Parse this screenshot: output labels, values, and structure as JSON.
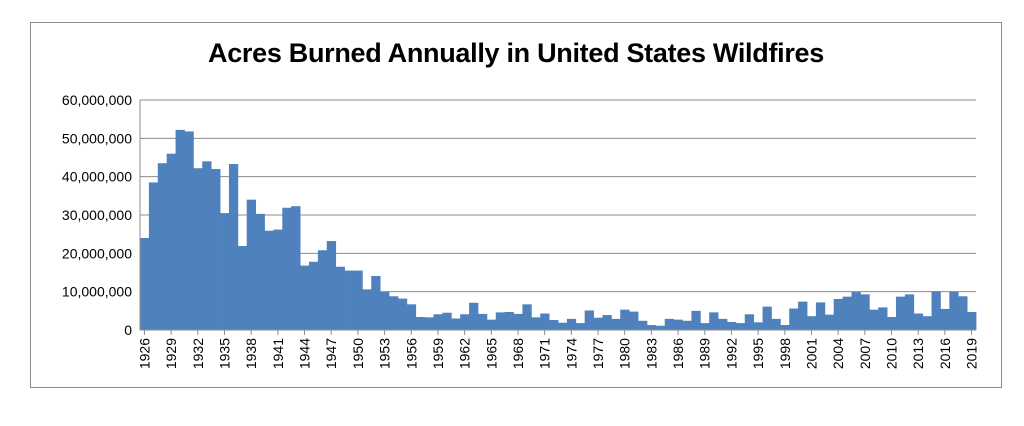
{
  "chart_data": {
    "type": "bar",
    "title": "Acres Burned Annually in United States Wildfires",
    "xlabel": "",
    "ylabel": "",
    "ylim": [
      0,
      60000000
    ],
    "yticks": [
      "0",
      "10,000,000",
      "20,000,000",
      "30,000,000",
      "40,000,000",
      "50,000,000",
      "60,000,000"
    ],
    "grid": "horizontal",
    "legend": "none",
    "bar_color": "#4f81bd",
    "categories": [
      "1926",
      "1927",
      "1928",
      "1929",
      "1930",
      "1931",
      "1932",
      "1933",
      "1934",
      "1935",
      "1936",
      "1937",
      "1938",
      "1939",
      "1940",
      "1941",
      "1942",
      "1943",
      "1944",
      "1945",
      "1946",
      "1947",
      "1948",
      "1949",
      "1950",
      "1951",
      "1952",
      "1953",
      "1954",
      "1955",
      "1956",
      "1957",
      "1958",
      "1959",
      "1960",
      "1961",
      "1962",
      "1963",
      "1964",
      "1965",
      "1966",
      "1967",
      "1968",
      "1969",
      "1970",
      "1971",
      "1972",
      "1973",
      "1974",
      "1975",
      "1976",
      "1977",
      "1978",
      "1979",
      "1980",
      "1981",
      "1982",
      "1983",
      "1984",
      "1985",
      "1986",
      "1987",
      "1988",
      "1989",
      "1990",
      "1991",
      "1992",
      "1993",
      "1994",
      "1995",
      "1996",
      "1997",
      "1998",
      "1999",
      "2000",
      "2001",
      "2002",
      "2003",
      "2004",
      "2005",
      "2006",
      "2007",
      "2008",
      "2009",
      "2010",
      "2011",
      "2012",
      "2013",
      "2014",
      "2015",
      "2016",
      "2017",
      "2018",
      "2019"
    ],
    "tick_labels_shown": [
      "1926",
      "1929",
      "1932",
      "1935",
      "1938",
      "1941",
      "1944",
      "1947",
      "1950",
      "1953",
      "1956",
      "1959",
      "1962",
      "1965",
      "1968",
      "1971",
      "1974",
      "1977",
      "1980",
      "1983",
      "1986",
      "1989",
      "1992",
      "1995",
      "1998",
      "2001",
      "2004",
      "2007",
      "2010",
      "2013",
      "2016",
      "2019"
    ],
    "values": [
      24000000,
      38500000,
      43500000,
      46000000,
      52200000,
      51800000,
      42200000,
      44000000,
      42000000,
      30500000,
      43300000,
      21900000,
      34000000,
      30300000,
      25900000,
      26200000,
      31900000,
      32300000,
      16800000,
      17800000,
      20800000,
      23200000,
      16500000,
      15500000,
      15500000,
      10600000,
      14100000,
      9900000,
      8800000,
      8200000,
      6700000,
      3400000,
      3300000,
      4100000,
      4500000,
      3000000,
      4100000,
      7100000,
      4200000,
      2700000,
      4600000,
      4700000,
      4200000,
      6700000,
      3300000,
      4300000,
      2600000,
      1900000,
      2900000,
      1800000,
      5100000,
      3200000,
      3900000,
      2900000,
      5300000,
      4800000,
      2400000,
      1300000,
      1100000,
      2900000,
      2700000,
      2400000,
      5000000,
      1800000,
      4600000,
      2900000,
      2100000,
      1800000,
      4100000,
      2000000,
      6100000,
      2900000,
      1300000,
      5600000,
      7400000,
      3600000,
      7200000,
      4000000,
      8100000,
      8700000,
      9900000,
      9300000,
      5300000,
      5900000,
      3400000,
      8700000,
      9300000,
      4300000,
      3600000,
      10100000,
      5500000,
      10000000,
      8800000,
      4700000
    ]
  }
}
